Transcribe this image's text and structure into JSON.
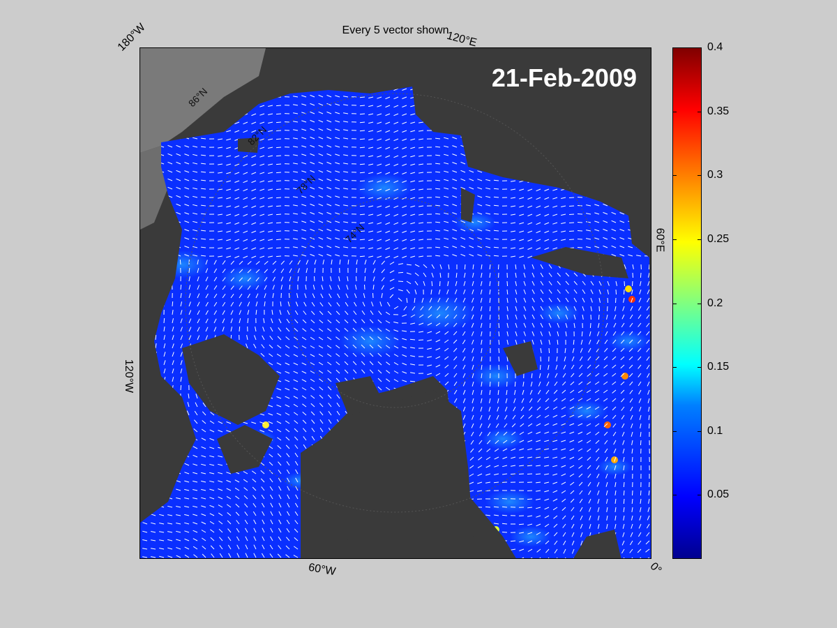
{
  "title": "Every 5 vector shown",
  "date": "21-Feb-2009",
  "lon_labels": {
    "top_left": "180°W",
    "top_right": "120°E",
    "right": "60°E",
    "bottom_right": "0°",
    "bottom": "60°W",
    "left": "120°W"
  },
  "lat_labels": [
    "86°N",
    "82°N",
    "78°N",
    "74°N"
  ],
  "colorbar": {
    "colormap": "jet",
    "min": 0,
    "max": 0.4,
    "ticks": [
      "0.4",
      "0.35",
      "0.3",
      "0.25",
      "0.2",
      "0.15",
      "0.1",
      "0.05"
    ]
  },
  "colors": {
    "background": "#cccccc",
    "land": "#3a3a3a",
    "land_light": "#7a7a7a",
    "ocean_low": "#0a2fff",
    "vector": "#ffffff"
  }
}
